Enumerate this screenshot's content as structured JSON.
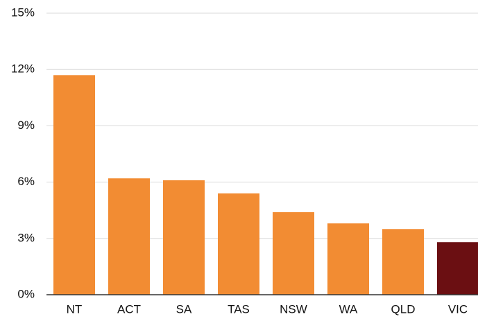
{
  "chart_data": {
    "type": "bar",
    "categories": [
      "NT",
      "ACT",
      "SA",
      "TAS",
      "NSW",
      "WA",
      "QLD",
      "VIC"
    ],
    "values": [
      11.7,
      6.2,
      6.1,
      5.4,
      4.4,
      3.8,
      3.5,
      2.8
    ],
    "colors": [
      "#f28c33",
      "#f28c33",
      "#f28c33",
      "#f28c33",
      "#f28c33",
      "#f28c33",
      "#f28c33",
      "#6b0f12"
    ],
    "ylim": [
      0,
      15
    ],
    "yticks": [
      {
        "value": 0,
        "label": "0%"
      },
      {
        "value": 3,
        "label": "3%"
      },
      {
        "value": 6,
        "label": "6%"
      },
      {
        "value": 9,
        "label": "9%"
      },
      {
        "value": 12,
        "label": "12%"
      },
      {
        "value": 15,
        "label": "15%"
      }
    ],
    "grid": true
  }
}
